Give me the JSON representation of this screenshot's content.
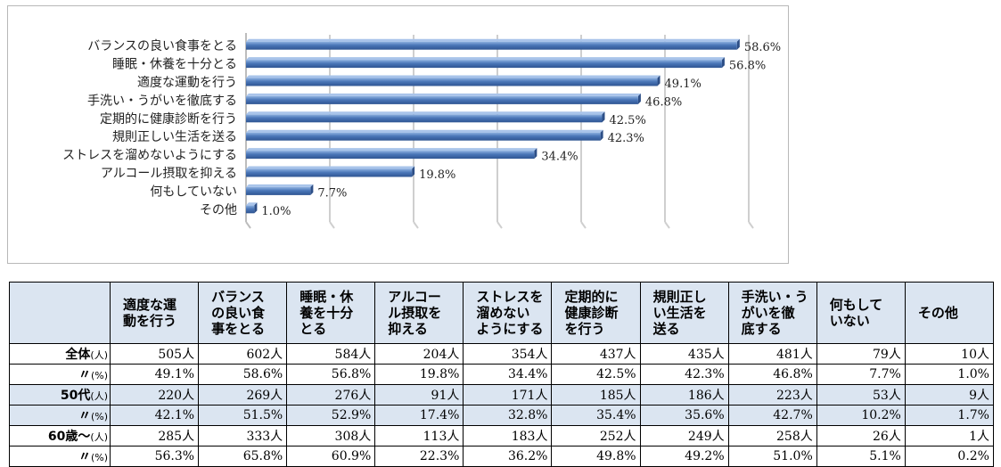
{
  "chart_data": {
    "type": "bar",
    "orientation": "horizontal",
    "categories": [
      "バランスの良い食事をとる",
      "睡眠・休養を十分とる",
      "適度な運動を行う",
      "手洗い・うがいを徹底する",
      "定期的に健康診断を行う",
      "規則正しい生活を送る",
      "ストレスを溜めないようにする",
      "アルコール摂取を抑える",
      "何もしていない",
      "その他"
    ],
    "values": [
      58.6,
      56.8,
      49.1,
      46.8,
      42.5,
      42.3,
      34.4,
      19.8,
      7.7,
      1.0
    ],
    "value_labels": [
      "58.6%",
      "56.8%",
      "49.1%",
      "46.8%",
      "42.5%",
      "42.3%",
      "34.4%",
      "19.8%",
      "7.7%",
      "1.0%"
    ],
    "xlim": [
      0,
      70
    ],
    "bar_color": "#4a76b8",
    "grid": true,
    "title": "",
    "xlabel": "",
    "ylabel": ""
  },
  "table": {
    "headers": [
      [
        "適度な運",
        "動を行う"
      ],
      [
        "バランス",
        "の良い食",
        "事をとる"
      ],
      [
        "睡眠・休",
        "養を十分",
        "とる"
      ],
      [
        "アルコー",
        "ル摂取を",
        "抑える"
      ],
      [
        "ストレスを",
        "溜めない",
        "ようにする"
      ],
      [
        "定期的に",
        "健康診断",
        "を行う"
      ],
      [
        "規則正し",
        "い生活を",
        "送る"
      ],
      [
        "手洗い・う",
        "がいを徹",
        "底する"
      ],
      [
        "何もして",
        "いない"
      ],
      [
        "その他"
      ]
    ],
    "rows": [
      {
        "label": "全体",
        "unit": "(人)",
        "shade": false,
        "cells": [
          "505人",
          "602人",
          "584人",
          "204人",
          "354人",
          "437人",
          "435人",
          "481人",
          "79人",
          "10人"
        ]
      },
      {
        "label": "〃",
        "unit": "(%)",
        "shade": false,
        "cells": [
          "49.1%",
          "58.6%",
          "56.8%",
          "19.8%",
          "34.4%",
          "42.5%",
          "42.3%",
          "46.8%",
          "7.7%",
          "1.0%"
        ]
      },
      {
        "label": "50代",
        "unit": "(人)",
        "shade": true,
        "cells": [
          "220人",
          "269人",
          "276人",
          "91人",
          "171人",
          "185人",
          "186人",
          "223人",
          "53人",
          "9人"
        ]
      },
      {
        "label": "〃",
        "unit": "(%)",
        "shade": true,
        "cells": [
          "42.1%",
          "51.5%",
          "52.9%",
          "17.4%",
          "32.8%",
          "35.4%",
          "35.6%",
          "42.7%",
          "10.2%",
          "1.7%"
        ]
      },
      {
        "label": "60歳～",
        "unit": "(人)",
        "shade": false,
        "cells": [
          "285人",
          "333人",
          "308人",
          "113人",
          "183人",
          "252人",
          "249人",
          "258人",
          "26人",
          "1人"
        ]
      },
      {
        "label": "〃",
        "unit": "(%)",
        "shade": false,
        "cells": [
          "56.3%",
          "65.8%",
          "60.9%",
          "22.3%",
          "36.2%",
          "49.8%",
          "49.2%",
          "51.0%",
          "5.1%",
          "0.2%"
        ]
      }
    ]
  }
}
